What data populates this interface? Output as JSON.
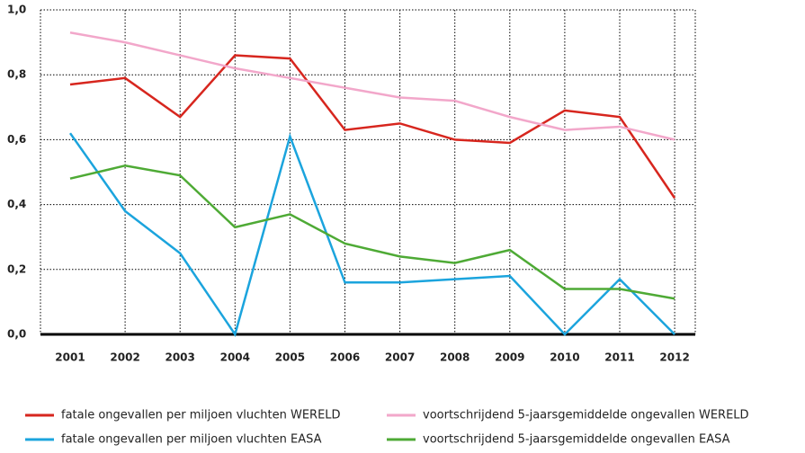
{
  "chart_data": {
    "type": "line",
    "categories": [
      "2001",
      "2002",
      "2003",
      "2004",
      "2005",
      "2006",
      "2007",
      "2008",
      "2009",
      "2010",
      "2011",
      "2012"
    ],
    "series": [
      {
        "name": "fatale ongevallen per miljoen vluchten WERELD",
        "color": "#d7261e",
        "values": [
          0.77,
          0.79,
          0.67,
          0.86,
          0.85,
          0.63,
          0.65,
          0.6,
          0.59,
          0.69,
          0.67,
          0.42
        ]
      },
      {
        "name": "voortschrijdend 5-jaarsgemiddelde ongevallen WERELD",
        "color": "#f2a7ca",
        "values": [
          0.93,
          0.9,
          0.86,
          0.82,
          0.79,
          0.76,
          0.73,
          0.72,
          0.67,
          0.63,
          0.64,
          0.6
        ]
      },
      {
        "name": "fatale ongevallen per miljoen vluchten EASA",
        "color": "#1ba4dd",
        "values": [
          0.62,
          0.38,
          0.25,
          0.0,
          0.61,
          0.16,
          0.16,
          0.17,
          0.18,
          0.0,
          0.17,
          0.0
        ]
      },
      {
        "name": "voortschrijdend 5-jaarsgemiddelde ongevallen EASA",
        "color": "#4eaa35",
        "values": [
          0.48,
          0.52,
          0.49,
          0.33,
          0.37,
          0.28,
          0.24,
          0.22,
          0.26,
          0.14,
          0.14,
          0.11
        ]
      }
    ],
    "ylim": [
      0,
      1
    ],
    "yticks": [
      {
        "value": 0,
        "label": "0,0"
      },
      {
        "value": 0.2,
        "label": "0,2"
      },
      {
        "value": 0.4,
        "label": "0,4"
      },
      {
        "value": 0.6,
        "label": "0,6"
      },
      {
        "value": 0.8,
        "label": "0,8"
      },
      {
        "value": 1,
        "label": "1,0"
      }
    ],
    "grid": true
  }
}
